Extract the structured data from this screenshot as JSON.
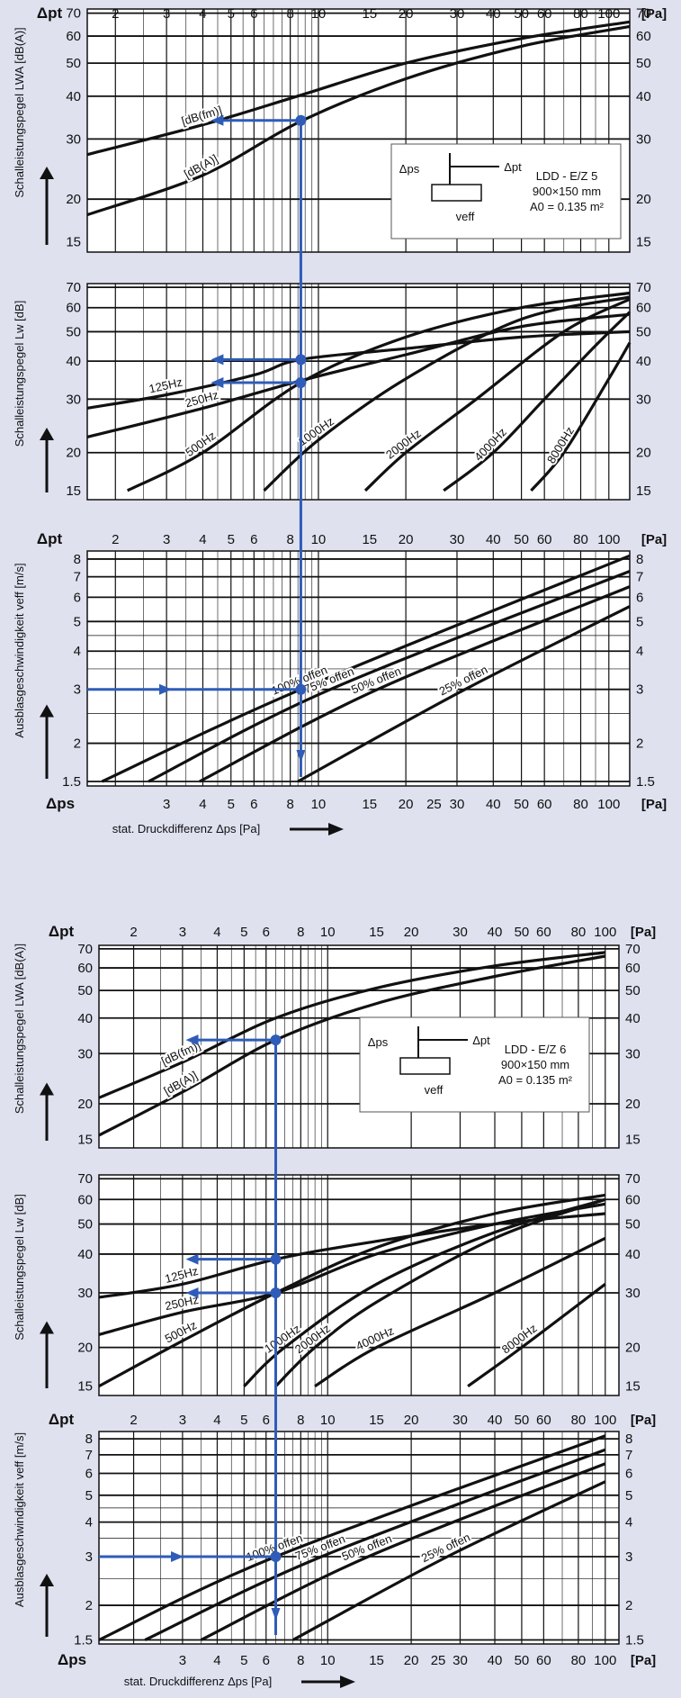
{
  "palette": {
    "background": "#dfe1ef",
    "plot": "#ffffff",
    "ink": "#111111",
    "guide": "#2f5cb8"
  },
  "chart_data": [
    {
      "id": "A",
      "type": "line",
      "device": {
        "name": "LDD - E/Z 5",
        "size": "900×150 mm",
        "area": "A0 = 0.135 m²"
      },
      "top_axis": {
        "symbol": "Δpt",
        "unit": "[Pa]",
        "ticks": [
          2,
          3,
          4,
          5,
          6,
          8,
          10,
          15,
          20,
          30,
          40,
          50,
          60,
          80,
          100
        ],
        "range": [
          1.6,
          118
        ]
      },
      "bottom_axis": {
        "symbol": "Δps",
        "unit": "[Pa]",
        "label": "stat. Druckdifferenz Δps [Pa]",
        "ticks": [
          3,
          4,
          5,
          6,
          8,
          10,
          15,
          20,
          25,
          30,
          40,
          50,
          60,
          80,
          100
        ],
        "range": [
          1.6,
          118
        ]
      },
      "panels": [
        {
          "key": "lwa",
          "ylabel": "Schalleistungspegel LWA [dB(A)]",
          "yscale": "log",
          "ylim": [
            14,
            72
          ],
          "yticks": [
            15,
            20,
            30,
            40,
            50,
            60,
            70
          ],
          "series": [
            {
              "name": "[dB(fm)]",
              "x": [
                1.6,
                4,
                8.7,
                20,
                50,
                118
              ],
              "y": [
                27,
                33,
                40.3,
                50,
                59,
                66
              ]
            },
            {
              "name": "[dB(A)]",
              "x": [
                1.6,
                4,
                8.7,
                20,
                50,
                118
              ],
              "y": [
                18,
                23.5,
                33.8,
                45,
                56,
                64
              ]
            }
          ]
        },
        {
          "key": "lw",
          "ylabel": "Schalleistungspegel Lw [dB]",
          "yscale": "log",
          "ylim": [
            14,
            72
          ],
          "yticks": [
            15,
            20,
            30,
            40,
            50,
            60,
            70
          ],
          "series": [
            {
              "name": "125Hz",
              "x": [
                1.6,
                3,
                6,
                8.7,
                20,
                50,
                118
              ],
              "y": [
                28,
                31,
                36,
                40.5,
                44,
                48,
                50
              ]
            },
            {
              "name": "250Hz",
              "x": [
                1.6,
                4,
                8.7,
                20,
                50,
                118
              ],
              "y": [
                22.5,
                28,
                34.5,
                42,
                52,
                57
              ]
            },
            {
              "name": "500Hz",
              "x": [
                2.2,
                4,
                8.7,
                20,
                50,
                118
              ],
              "y": [
                15,
                20,
                34,
                48,
                60,
                67
              ]
            },
            {
              "name": "1000Hz",
              "x": [
                6.5,
                10,
                20,
                50,
                118
              ],
              "y": [
                15,
                22,
                35,
                55,
                65
              ]
            },
            {
              "name": "2000Hz",
              "x": [
                14.5,
                20,
                35,
                70,
                118
              ],
              "y": [
                15,
                20,
                30,
                50,
                64
              ]
            },
            {
              "name": "4000Hz",
              "x": [
                27,
                40,
                60,
                90,
                118
              ],
              "y": [
                15,
                20,
                30,
                45,
                58
              ]
            },
            {
              "name": "8000Hz",
              "x": [
                54,
                70,
                100,
                118
              ],
              "y": [
                15,
                20,
                35,
                46
              ]
            }
          ]
        },
        {
          "key": "v",
          "ylabel": "Ausblasgeschwindigkeit veff [m/s]",
          "yscale": "log",
          "ylim": [
            1.45,
            8.5
          ],
          "yticks": [
            1.5,
            2,
            3,
            4,
            5,
            6,
            7,
            8
          ],
          "series": [
            {
              "name": "100% offen",
              "x": [
                1.8,
                8.7,
                118
              ],
              "y": [
                1.5,
                3.0,
                8.2
              ]
            },
            {
              "name": "75% offen",
              "x": [
                2.6,
                11,
                118
              ],
              "y": [
                1.5,
                3.0,
                7.3
              ]
            },
            {
              "name": "50% offen",
              "x": [
                3.9,
                16,
                118
              ],
              "y": [
                1.5,
                3.0,
                6.5
              ]
            },
            {
              "name": "25% offen",
              "x": [
                8.5,
                32,
                118
              ],
              "y": [
                1.5,
                3.0,
                5.6
              ]
            }
          ]
        }
      ],
      "guide": {
        "dp": 8.7,
        "v": 3.0,
        "lwa": 34,
        "lw": [
          40.5,
          34
        ]
      }
    },
    {
      "id": "B",
      "type": "line",
      "device": {
        "name": "LDD - E/Z 6",
        "size": "900×150 mm",
        "area": "A0 = 0.135 m²"
      },
      "top_axis": {
        "symbol": "Δpt",
        "unit": "[Pa]",
        "ticks": [
          2,
          3,
          4,
          5,
          6,
          8,
          10,
          15,
          20,
          30,
          40,
          50,
          60,
          80,
          100
        ],
        "range": [
          1.5,
          112
        ]
      },
      "bottom_axis": {
        "symbol": "Δps",
        "unit": "[Pa]",
        "label": "stat. Druckdifferenz Δps [Pa]",
        "ticks": [
          3,
          4,
          5,
          6,
          8,
          10,
          15,
          20,
          25,
          30,
          40,
          50,
          60,
          80,
          100
        ],
        "range": [
          1.5,
          112
        ]
      },
      "panels": [
        {
          "key": "lwa",
          "ylabel": "Schalleistungspegel LWA [dB(A)]",
          "yscale": "log",
          "ylim": [
            14,
            72
          ],
          "yticks": [
            15,
            20,
            30,
            40,
            50,
            60,
            70
          ],
          "series": [
            {
              "name": "[dB(fm)]",
              "x": [
                1.5,
                3,
                6.5,
                15,
                40,
                100
              ],
              "y": [
                21,
                28,
                40,
                51,
                61,
                68
              ]
            },
            {
              "name": "[dB(A)]",
              "x": [
                1.5,
                3,
                6.5,
                15,
                40,
                100
              ],
              "y": [
                15.5,
                22,
                33.5,
                45,
                56,
                66
              ]
            }
          ]
        },
        {
          "key": "lw",
          "ylabel": "Schalleistungspegel Lw [dB]",
          "yscale": "log",
          "ylim": [
            14,
            72
          ],
          "yticks": [
            15,
            20,
            30,
            40,
            50,
            60,
            70
          ],
          "series": [
            {
              "name": "125Hz",
              "x": [
                1.5,
                3,
                6.5,
                15,
                40,
                100
              ],
              "y": [
                29,
                32,
                38.5,
                44,
                50,
                54
              ]
            },
            {
              "name": "250Hz",
              "x": [
                1.5,
                3,
                6.5,
                15,
                40,
                100
              ],
              "y": [
                22,
                26,
                30,
                40,
                50,
                58
              ]
            },
            {
              "name": "500Hz",
              "x": [
                1.5,
                3,
                6.5,
                15,
                40,
                100
              ],
              "y": [
                15,
                21,
                30,
                42,
                54,
                62
              ]
            },
            {
              "name": "1000Hz",
              "x": [
                5,
                7,
                15,
                40,
                100
              ],
              "y": [
                15,
                20,
                32,
                47,
                60
              ]
            },
            {
              "name": "2000Hz",
              "x": [
                6.5,
                9,
                15,
                40,
                100
              ],
              "y": [
                15,
                20,
                28,
                45,
                60
              ]
            },
            {
              "name": "4000Hz",
              "x": [
                9,
                15,
                40,
                100
              ],
              "y": [
                15,
                20,
                30,
                45
              ]
            },
            {
              "name": "8000Hz",
              "x": [
                32,
                50,
                100
              ],
              "y": [
                15,
                20,
                32
              ]
            }
          ]
        },
        {
          "key": "v",
          "ylabel": "Ausblasgeschwindigkeit veff [m/s]",
          "yscale": "log",
          "ylim": [
            1.45,
            8.5
          ],
          "yticks": [
            1.5,
            2,
            3,
            4,
            5,
            6,
            7,
            8
          ],
          "series": [
            {
              "name": "100% offen",
              "x": [
                1.5,
                6.5,
                100
              ],
              "y": [
                1.5,
                3.0,
                8.2
              ]
            },
            {
              "name": "75% offen",
              "x": [
                2.2,
                9.5,
                100
              ],
              "y": [
                1.5,
                3.0,
                7.3
              ]
            },
            {
              "name": "50% offen",
              "x": [
                3.5,
                14,
                100
              ],
              "y": [
                1.5,
                3.0,
                6.5
              ]
            },
            {
              "name": "25% offen",
              "x": [
                7.5,
                27,
                100
              ],
              "y": [
                1.5,
                3.0,
                5.6
              ]
            }
          ]
        }
      ],
      "guide": {
        "dp": 6.5,
        "v": 3.0,
        "lwa": 33.5,
        "lw": [
          38.5,
          30
        ]
      }
    }
  ]
}
